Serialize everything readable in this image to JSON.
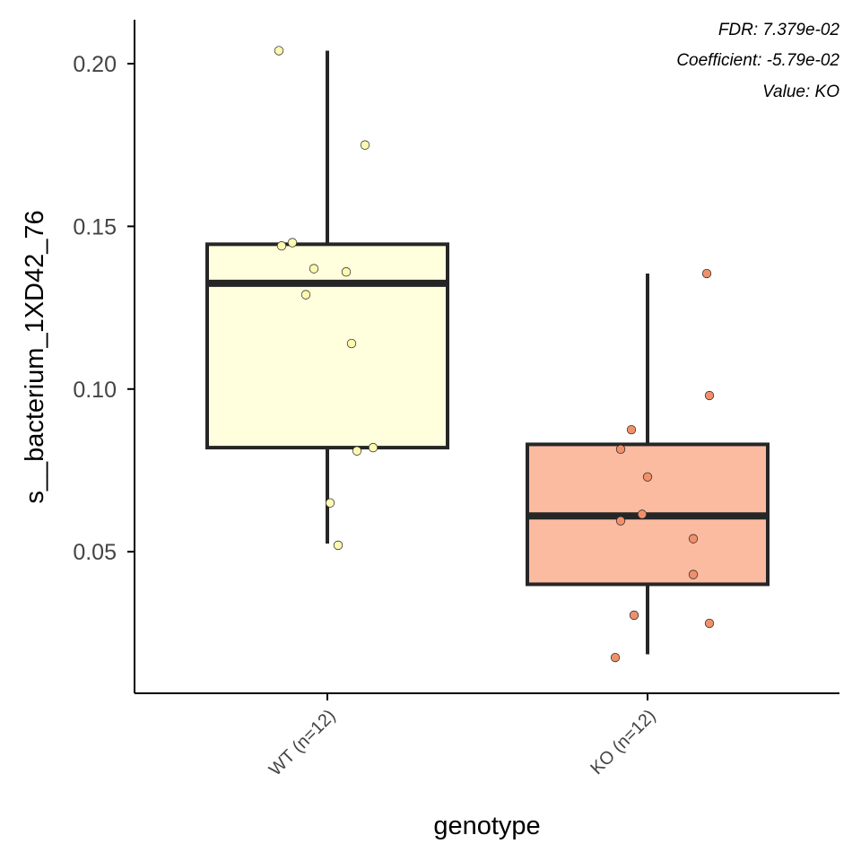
{
  "chart_data": {
    "type": "boxplot",
    "xlabel": "genotype",
    "ylabel": "s__bacterium_1XD42_76",
    "ylim": [
      0.0065,
      0.2135
    ],
    "yticks": [
      0.05,
      0.1,
      0.15,
      0.2
    ],
    "ytick_labels": [
      "0.05",
      "0.10",
      "0.15",
      "0.20"
    ],
    "annotations": [
      "FDR: 7.379e-02",
      "Coefficient: -5.79e-02",
      "Value: KO"
    ],
    "groups": [
      {
        "name": "WT",
        "label": "WT (n=12)",
        "fill": "#FFFFDD",
        "point_color": "#FFF8B0",
        "box": {
          "lower_whisker": 0.0525,
          "q1": 0.082,
          "median": 0.1325,
          "q3": 0.1445,
          "upper_whisker": 0.204
        },
        "points": [
          {
            "jitter": -0.18,
            "value": 0.204
          },
          {
            "jitter": 0.14,
            "value": 0.175
          },
          {
            "jitter": -0.17,
            "value": 0.144
          },
          {
            "jitter": -0.13,
            "value": 0.145
          },
          {
            "jitter": -0.05,
            "value": 0.137
          },
          {
            "jitter": 0.07,
            "value": 0.136
          },
          {
            "jitter": -0.08,
            "value": 0.129
          },
          {
            "jitter": 0.09,
            "value": 0.114
          },
          {
            "jitter": 0.17,
            "value": 0.082
          },
          {
            "jitter": 0.11,
            "value": 0.081
          },
          {
            "jitter": 0.01,
            "value": 0.065
          },
          {
            "jitter": 0.04,
            "value": 0.052
          }
        ]
      },
      {
        "name": "KO",
        "label": "KO (n=12)",
        "fill": "#FBBBA1",
        "point_color": "#F0906A",
        "box": {
          "lower_whisker": 0.0185,
          "q1": 0.04,
          "median": 0.061,
          "q3": 0.083,
          "upper_whisker": 0.1355
        },
        "points": [
          {
            "jitter": 0.22,
            "value": 0.1355
          },
          {
            "jitter": 0.23,
            "value": 0.098
          },
          {
            "jitter": -0.06,
            "value": 0.0875
          },
          {
            "jitter": -0.1,
            "value": 0.0815
          },
          {
            "jitter": 0.0,
            "value": 0.073
          },
          {
            "jitter": -0.02,
            "value": 0.0615
          },
          {
            "jitter": -0.1,
            "value": 0.0595
          },
          {
            "jitter": 0.17,
            "value": 0.054
          },
          {
            "jitter": 0.17,
            "value": 0.043
          },
          {
            "jitter": -0.05,
            "value": 0.0305
          },
          {
            "jitter": 0.23,
            "value": 0.028
          },
          {
            "jitter": -0.12,
            "value": 0.0175
          }
        ]
      }
    ]
  }
}
